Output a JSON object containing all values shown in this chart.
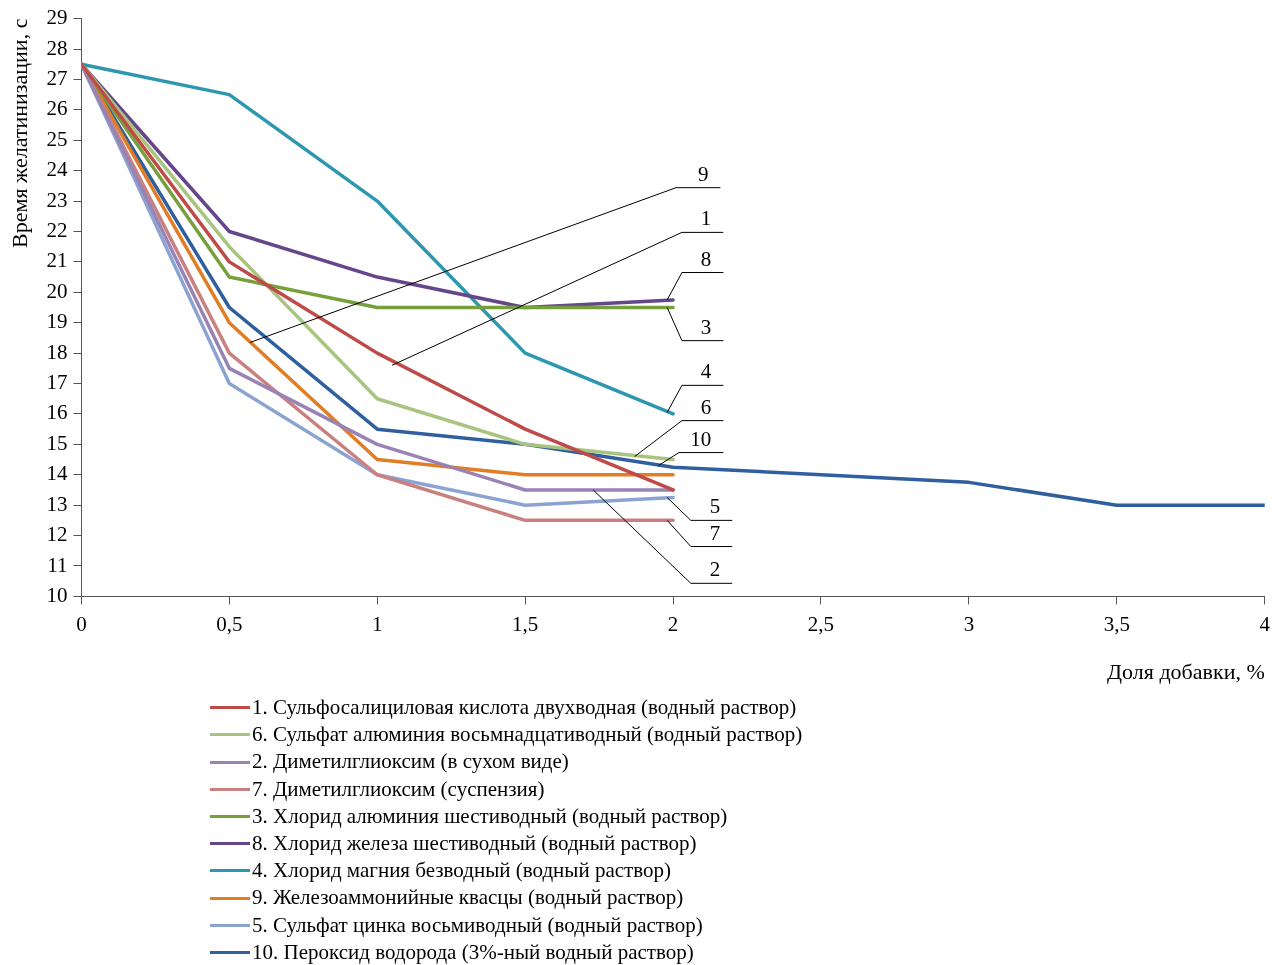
{
  "chart_data": {
    "type": "line",
    "xlabel": "Доля добавки, %",
    "ylabel": "Время желатинизации, с",
    "x": [
      0,
      0.5,
      1,
      1.5,
      2
    ],
    "xlim": [
      0,
      4
    ],
    "xticks": [
      0,
      {
        "value": 0.5,
        "label": "0,5"
      },
      1,
      {
        "value": 1.5,
        "label": "1,5"
      },
      2,
      {
        "value": 2.5,
        "label": "2,5"
      },
      3,
      {
        "value": 3.5,
        "label": "3,5"
      },
      4
    ],
    "ylim": [
      10,
      29
    ],
    "yticks": [
      10,
      11,
      12,
      13,
      14,
      15,
      16,
      17,
      18,
      19,
      20,
      21,
      22,
      23,
      24,
      25,
      26,
      27,
      28,
      29
    ],
    "grid": false,
    "legend": "bottom",
    "marker": "none",
    "line_style": "solid",
    "series": [
      {
        "name": "1. Сульфосалициловая кислота двухводная (водный раствор)",
        "color": "#be4b48",
        "values": [
          27.5,
          21,
          18,
          15.5,
          13.5
        ]
      },
      {
        "name": "6. Сульфат алюминия восьмнадцативодный (водный раствор)",
        "color": "#a9c47f",
        "values": [
          27.5,
          21.5,
          16.5,
          15,
          14.5
        ]
      },
      {
        "name": "2. Диметилглиоксим (в сухом виде)",
        "color": "#9983b5",
        "values": [
          27.5,
          17.5,
          15,
          13.5,
          13.5
        ]
      },
      {
        "name": "7. Диметилглиоксим (суспензия)",
        "color": "#c9817f",
        "values": [
          27.5,
          18,
          14,
          12.5,
          12.5
        ]
      },
      {
        "name": "3. Хлорид алюминия шестиводный (водный раствор)",
        "color": "#77a03c",
        "values": [
          27.5,
          20.5,
          19.5,
          19.5,
          19.5
        ]
      },
      {
        "name": "8. Хлорид железа шестиводный (водный раствор)",
        "color": "#65468b",
        "values": [
          27.5,
          22,
          20.5,
          19.5,
          19.75
        ]
      },
      {
        "name": "4. Хлорид магния безводный (водный раствор)",
        "color": "#2e97b0",
        "values": [
          27.5,
          26.5,
          23,
          18,
          16
        ]
      },
      {
        "name": "9. Железоаммонийные квасцы (водный раствор)",
        "color": "#e07d25",
        "values": [
          27.5,
          19,
          14.5,
          14,
          14
        ]
      },
      {
        "name": "5. Сульфат цинка восьмиводный (водный раствор)",
        "color": "#8aa3d0",
        "values": [
          27.5,
          17,
          14,
          13,
          13.25
        ]
      },
      {
        "name": "10. Пероксид водорода (3%-ный водный раствор)",
        "color": "#2f5f9e",
        "x": [
          0,
          0.5,
          1,
          1.5,
          2,
          2.5,
          3,
          3.5,
          4
        ],
        "values": [
          27.5,
          19.5,
          15.5,
          15,
          14.25,
          14,
          13.75,
          13,
          13
        ]
      }
    ],
    "annotations": [
      {
        "text": "9",
        "x": 0.57,
        "y": 18.35
      },
      {
        "text": "1",
        "x": 1.05,
        "y": 17.6
      },
      {
        "text": "8",
        "x": 1.98,
        "y": 19.75
      },
      {
        "text": "3",
        "x": 1.98,
        "y": 19.5
      },
      {
        "text": "4",
        "x": 1.98,
        "y": 16.05
      },
      {
        "text": "6",
        "x": 1.87,
        "y": 14.6
      },
      {
        "text": "10",
        "x": 1.95,
        "y": 14.3
      },
      {
        "text": "5",
        "x": 1.98,
        "y": 13.25
      },
      {
        "text": "7",
        "x": 1.98,
        "y": 12.5
      },
      {
        "text": "2",
        "x": 1.73,
        "y": 13.5
      }
    ]
  }
}
